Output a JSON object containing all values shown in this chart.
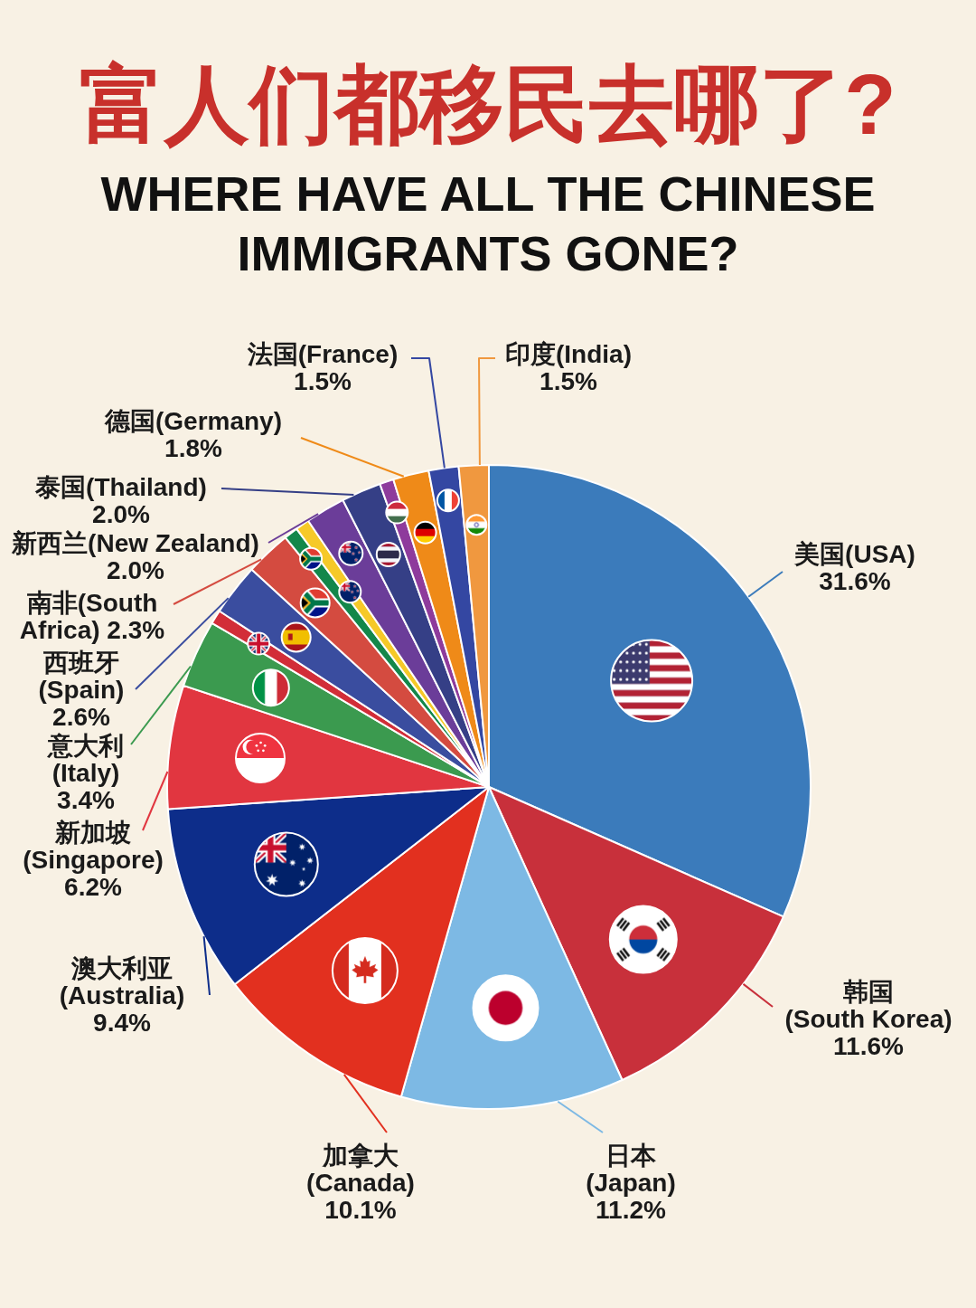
{
  "chart_data": {
    "type": "pie",
    "title": "富人们都移民去哪了?",
    "subtitle": "WHERE HAVE ALL THE CHINESE IMMIGRANTS GONE?",
    "categories": [
      "美国(USA)",
      "韩国(South Korea)",
      "日本(Japan)",
      "加拿大(Canada)",
      "澳大利亚(Australia)",
      "新加坡(Singapore)",
      "意大利(Italy)",
      null,
      "西班牙(Spain)",
      "南非(South Africa)",
      null,
      null,
      "新西兰(New Zealand)",
      "泰国(Thailand)",
      null,
      "德国(Germany)",
      "法国(France)",
      "印度(India)"
    ],
    "values": [
      31.6,
      11.6,
      11.2,
      10.1,
      9.4,
      6.2,
      3.4,
      0.7,
      2.6,
      2.3,
      0.7,
      0.7,
      2.0,
      2.0,
      0.7,
      1.8,
      1.5,
      1.5
    ],
    "value_labels": [
      "31.6%",
      "11.6%",
      "11.2%",
      "10.1%",
      "9.4%",
      "6.2%",
      "3.4%",
      null,
      "2.6%",
      "2.3%",
      null,
      null,
      "2.0%",
      "2.0%",
      null,
      "1.8%",
      "1.5%",
      "1.5%"
    ],
    "colors": [
      "#3b7bbb",
      "#c8303b",
      "#7db9e4",
      "#e2301f",
      "#0d2d8a",
      "#e13640",
      "#3b9a4f",
      "#d22d38",
      "#3a4d9f",
      "#d44b40",
      "#13874a",
      "#f6c928",
      "#6b3d99",
      "#353f86",
      "#8e3b9c",
      "#ef8a18",
      "#3447a2",
      "#f0983f"
    ]
  }
}
